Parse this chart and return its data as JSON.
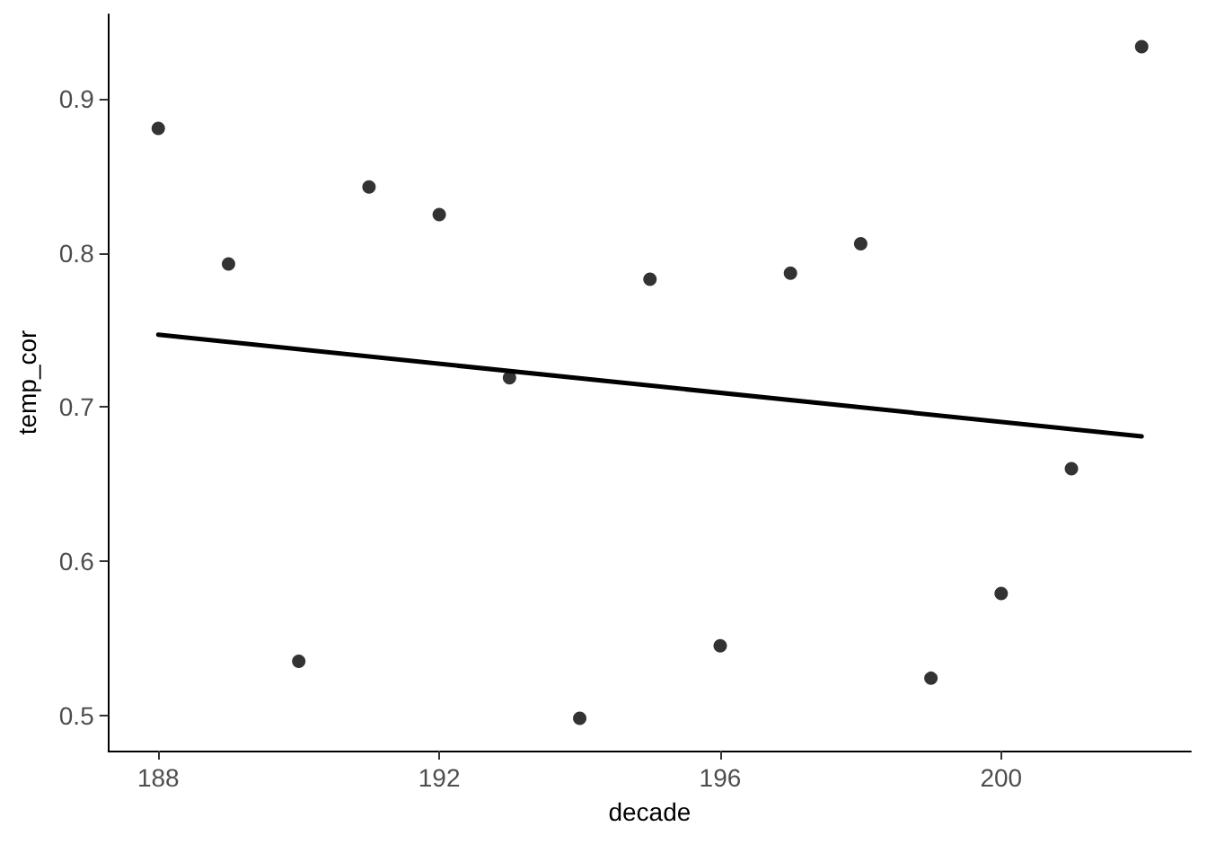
{
  "chart_data": {
    "type": "scatter",
    "xlabel": "decade",
    "ylabel": "temp_cor",
    "xlim": [
      187.29,
      202.7
    ],
    "xticks": [
      188,
      192,
      196,
      200
    ],
    "ylim": [
      0.477,
      0.955
    ],
    "yticks": [
      0.5,
      0.6,
      0.7,
      0.8,
      0.9
    ],
    "grid": false,
    "marker": "circle",
    "series": [
      {
        "color": "#000000",
        "x": [
          188,
          189,
          190,
          191,
          192,
          193,
          194,
          195,
          196,
          197,
          198,
          199,
          200,
          201,
          202
        ],
        "values": [
          0.881,
          0.793,
          0.535,
          0.843,
          0.825,
          0.719,
          0.498,
          0.783,
          0.545,
          0.787,
          0.806,
          0.524,
          0.579,
          0.66,
          0.934
        ]
      },
      {
        "type": "line",
        "color": "#000000",
        "line_style": "solid",
        "marker": "none",
        "x": [
          188,
          202
        ],
        "values": [
          0.747,
          0.681
        ]
      }
    ]
  }
}
